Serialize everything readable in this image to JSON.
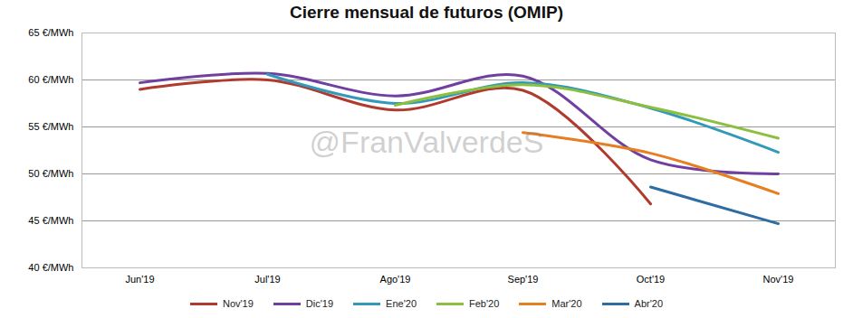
{
  "chart_data": {
    "type": "line",
    "title": "Cierre mensual de futuros (OMIP)",
    "annotation": "@FranValverdeS",
    "categories": [
      "Jun'19",
      "Jul'19",
      "Ago'19",
      "Sep'19",
      "Oct'19",
      "Nov'19"
    ],
    "series": [
      {
        "name": "Nov'19",
        "color": "#b03a2e",
        "values": [
          59.0,
          60.0,
          56.8,
          58.9,
          46.8,
          null
        ]
      },
      {
        "name": "Dic'19",
        "color": "#7040a0",
        "values": [
          59.7,
          60.7,
          58.3,
          60.4,
          51.5,
          50.0
        ]
      },
      {
        "name": "Ene'20",
        "color": "#3399b8",
        "values": [
          null,
          60.6,
          57.5,
          59.7,
          57.0,
          52.3
        ]
      },
      {
        "name": "Feb'20",
        "color": "#8cbf3f",
        "values": [
          null,
          null,
          57.3,
          59.5,
          57.1,
          53.8
        ]
      },
      {
        "name": "Mar'20",
        "color": "#e67e22",
        "values": [
          null,
          null,
          null,
          54.4,
          52.2,
          47.9
        ]
      },
      {
        "name": "Abr'20",
        "color": "#2e6da4",
        "values": [
          null,
          null,
          null,
          null,
          48.6,
          44.7
        ]
      }
    ],
    "ylim": [
      40,
      65
    ],
    "yticks": [
      {
        "value": 40,
        "label": "40 €/MWh"
      },
      {
        "value": 45,
        "label": "45 €/MWh"
      },
      {
        "value": 50,
        "label": "50 €/MWh"
      },
      {
        "value": 55,
        "label": "55 €/MWh"
      },
      {
        "value": 60,
        "label": "60 €/MWh"
      },
      {
        "value": 65,
        "label": "65 €/MWh"
      }
    ],
    "grid": true,
    "legend": "bottom"
  }
}
